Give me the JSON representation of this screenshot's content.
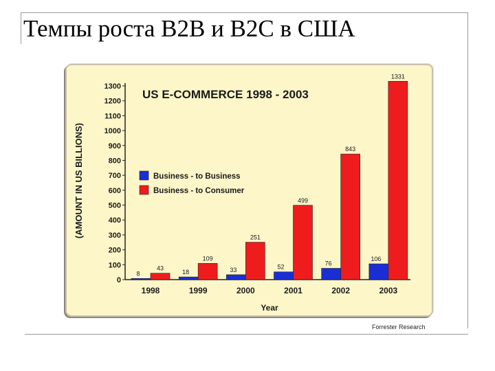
{
  "slide": {
    "title": "Темпы роста B2B и B2C в США",
    "source": "Forrester Research"
  },
  "colors": {
    "panel_background": "#fcf6c8",
    "b2b": "#1a2ed6",
    "b2c": "#ee1c1c",
    "text": "#1a1a1a"
  },
  "chart_data": {
    "type": "bar",
    "title": "US E-COMMERCE 1998 - 2003",
    "xlabel": "Year",
    "ylabel": "(AMOUNT IN US BILLIONS)",
    "categories": [
      "1998",
      "1999",
      "2000",
      "2001",
      "2002",
      "2003"
    ],
    "series": [
      {
        "name": "Business - to Business",
        "values": [
          8,
          18,
          33,
          52,
          76,
          106
        ],
        "color": "#1a2ed6"
      },
      {
        "name": "Business - to Consumer",
        "values": [
          43,
          109,
          251,
          499,
          843,
          1331
        ],
        "color": "#ee1c1c"
      }
    ],
    "ylim": [
      0,
      1300
    ],
    "yticks": [
      0,
      100,
      200,
      300,
      400,
      500,
      600,
      700,
      800,
      900,
      1000,
      1100,
      1200,
      1300
    ],
    "legend_position": "upper-left",
    "grid": false
  }
}
